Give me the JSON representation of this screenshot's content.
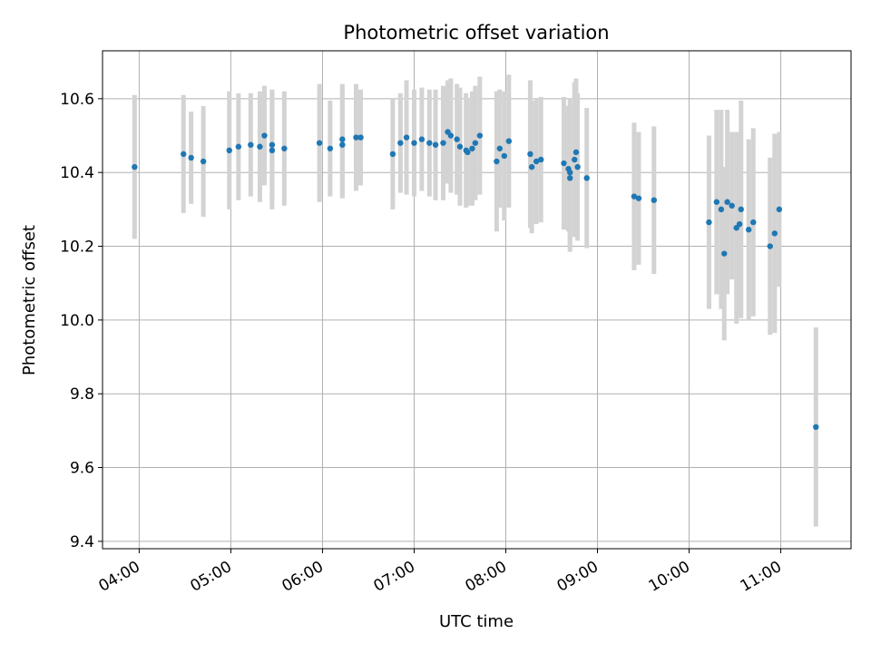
{
  "chart_data": {
    "type": "scatter",
    "title": "Photometric offset variation",
    "xlabel": "UTC time",
    "ylabel": "Photometric offset",
    "x_unit": "UTC hours",
    "x_tick_labels": [
      "04:00",
      "05:00",
      "06:00",
      "07:00",
      "08:00",
      "09:00",
      "10:00",
      "11:00"
    ],
    "y_tick_labels": [
      "9.4",
      "9.6",
      "9.8",
      "10.0",
      "10.2",
      "10.4",
      "10.6"
    ],
    "xlim": [
      "03:36",
      "11:46"
    ],
    "ylim": [
      9.38,
      10.73
    ],
    "grid": true,
    "colors": {
      "marker": "#1f77b4",
      "errorbar": "#d3d3d3",
      "grid": "#b0b0b0"
    },
    "series": [
      {
        "x": [
          "03:57",
          "04:29",
          "04:34",
          "04:42",
          "04:59",
          "05:05",
          "05:13",
          "05:19",
          "05:22",
          "05:27",
          "05:27",
          "05:35",
          "05:58",
          "06:05",
          "06:13",
          "06:13",
          "06:22",
          "06:25",
          "06:46",
          "06:51",
          "06:55",
          "07:00",
          "07:05",
          "07:10",
          "07:14",
          "07:19",
          "07:22",
          "07:24",
          "07:28",
          "07:30",
          "07:34",
          "07:35",
          "07:38",
          "07:40",
          "07:43",
          "07:54",
          "07:56",
          "07:59",
          "08:02",
          "08:16",
          "08:17",
          "08:20",
          "08:23",
          "08:38",
          "08:41",
          "08:42",
          "08:42",
          "08:45",
          "08:46",
          "08:47",
          "08:53",
          "09:24",
          "09:27",
          "09:37",
          "10:13",
          "10:18",
          "10:21",
          "10:23",
          "10:25",
          "10:28",
          "10:31",
          "10:33",
          "10:34",
          "10:39",
          "10:42",
          "10:53",
          "10:56",
          "10:59",
          "11:23"
        ],
        "y": [
          10.415,
          10.45,
          10.44,
          10.43,
          10.46,
          10.47,
          10.475,
          10.47,
          10.5,
          10.475,
          10.46,
          10.465,
          10.48,
          10.465,
          10.49,
          10.475,
          10.495,
          10.495,
          10.45,
          10.48,
          10.495,
          10.48,
          10.49,
          10.48,
          10.475,
          10.48,
          10.51,
          10.5,
          10.49,
          10.47,
          10.46,
          10.455,
          10.465,
          10.48,
          10.5,
          10.43,
          10.465,
          10.445,
          10.485,
          10.45,
          10.415,
          10.43,
          10.435,
          10.425,
          10.41,
          10.385,
          10.4,
          10.435,
          10.455,
          10.415,
          10.385,
          10.335,
          10.33,
          10.325,
          10.265,
          10.32,
          10.3,
          10.18,
          10.32,
          10.31,
          10.25,
          10.26,
          10.3,
          10.245,
          10.265,
          10.2,
          10.235,
          10.3,
          9.71
        ],
        "err": [
          0.195,
          0.16,
          0.125,
          0.15,
          0.16,
          0.145,
          0.14,
          0.15,
          0.135,
          0.15,
          0.16,
          0.155,
          0.16,
          0.13,
          0.15,
          0.145,
          0.145,
          0.13,
          0.15,
          0.135,
          0.155,
          0.145,
          0.14,
          0.145,
          0.15,
          0.155,
          0.14,
          0.155,
          0.15,
          0.16,
          0.155,
          0.145,
          0.155,
          0.155,
          0.16,
          0.19,
          0.16,
          0.175,
          0.18,
          0.2,
          0.18,
          0.17,
          0.17,
          0.18,
          0.17,
          0.2,
          0.2,
          0.21,
          0.2,
          0.2,
          0.19,
          0.2,
          0.18,
          0.2,
          0.235,
          0.25,
          0.27,
          0.235,
          0.25,
          0.2,
          0.26,
          0.25,
          0.295,
          0.245,
          0.255,
          0.24,
          0.27,
          0.21,
          0.27
        ]
      }
    ]
  }
}
